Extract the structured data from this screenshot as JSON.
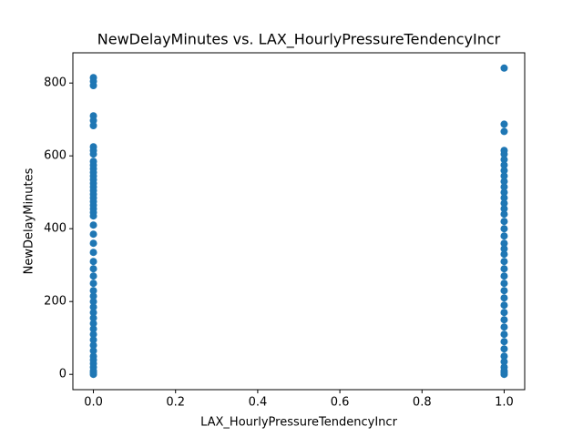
{
  "chart_data": {
    "type": "scatter",
    "title": "NewDelayMinutes vs. LAX_HourlyPressureTendencyIncr",
    "x_label": "LAX_HourlyPressureTendencyIncr",
    "y_label": "NewDelayMinutes",
    "color": "#1f77b4",
    "grid": false,
    "xlim": [
      -0.05,
      1.05
    ],
    "ylim": [
      -42,
      883
    ],
    "xticks": [
      {
        "value": 0,
        "label": "0.0"
      },
      0.2,
      0.4,
      0.6,
      0.8,
      {
        "value": 1,
        "label": "1.0"
      }
    ],
    "yticks": [
      0,
      200,
      400,
      600,
      800
    ],
    "x": [
      0,
      0,
      0,
      0,
      0,
      0,
      0,
      0,
      0,
      0,
      0,
      0,
      0,
      0,
      0,
      0,
      0,
      0,
      0,
      0,
      0,
      0,
      0,
      0,
      0,
      0,
      0,
      0,
      0,
      0,
      0,
      0,
      0,
      0,
      0,
      0,
      0,
      0,
      0,
      0,
      0,
      0,
      0,
      0,
      0,
      0,
      0,
      0,
      0,
      0,
      0,
      0,
      1,
      1,
      1,
      1,
      1,
      1,
      1,
      1,
      1,
      1,
      1,
      1,
      1,
      1,
      1,
      1,
      1,
      1,
      1,
      1,
      1,
      1,
      1,
      1,
      1,
      1,
      1,
      1,
      1,
      1,
      1,
      1,
      1,
      1,
      1,
      1,
      1,
      1,
      1,
      1,
      1
    ],
    "values": [
      815,
      805,
      793,
      710,
      697,
      683,
      625,
      615,
      605,
      585,
      575,
      565,
      555,
      545,
      535,
      525,
      515,
      505,
      495,
      485,
      475,
      465,
      455,
      445,
      435,
      410,
      385,
      360,
      335,
      310,
      290,
      270,
      250,
      230,
      215,
      200,
      185,
      170,
      155,
      140,
      125,
      110,
      95,
      80,
      65,
      50,
      40,
      30,
      20,
      10,
      5,
      0,
      841,
      687,
      667,
      615,
      605,
      590,
      575,
      560,
      545,
      530,
      515,
      500,
      485,
      470,
      455,
      440,
      420,
      400,
      380,
      360,
      345,
      330,
      310,
      290,
      270,
      250,
      230,
      210,
      190,
      170,
      150,
      130,
      110,
      90,
      70,
      50,
      35,
      20,
      10,
      5,
      0
    ]
  }
}
